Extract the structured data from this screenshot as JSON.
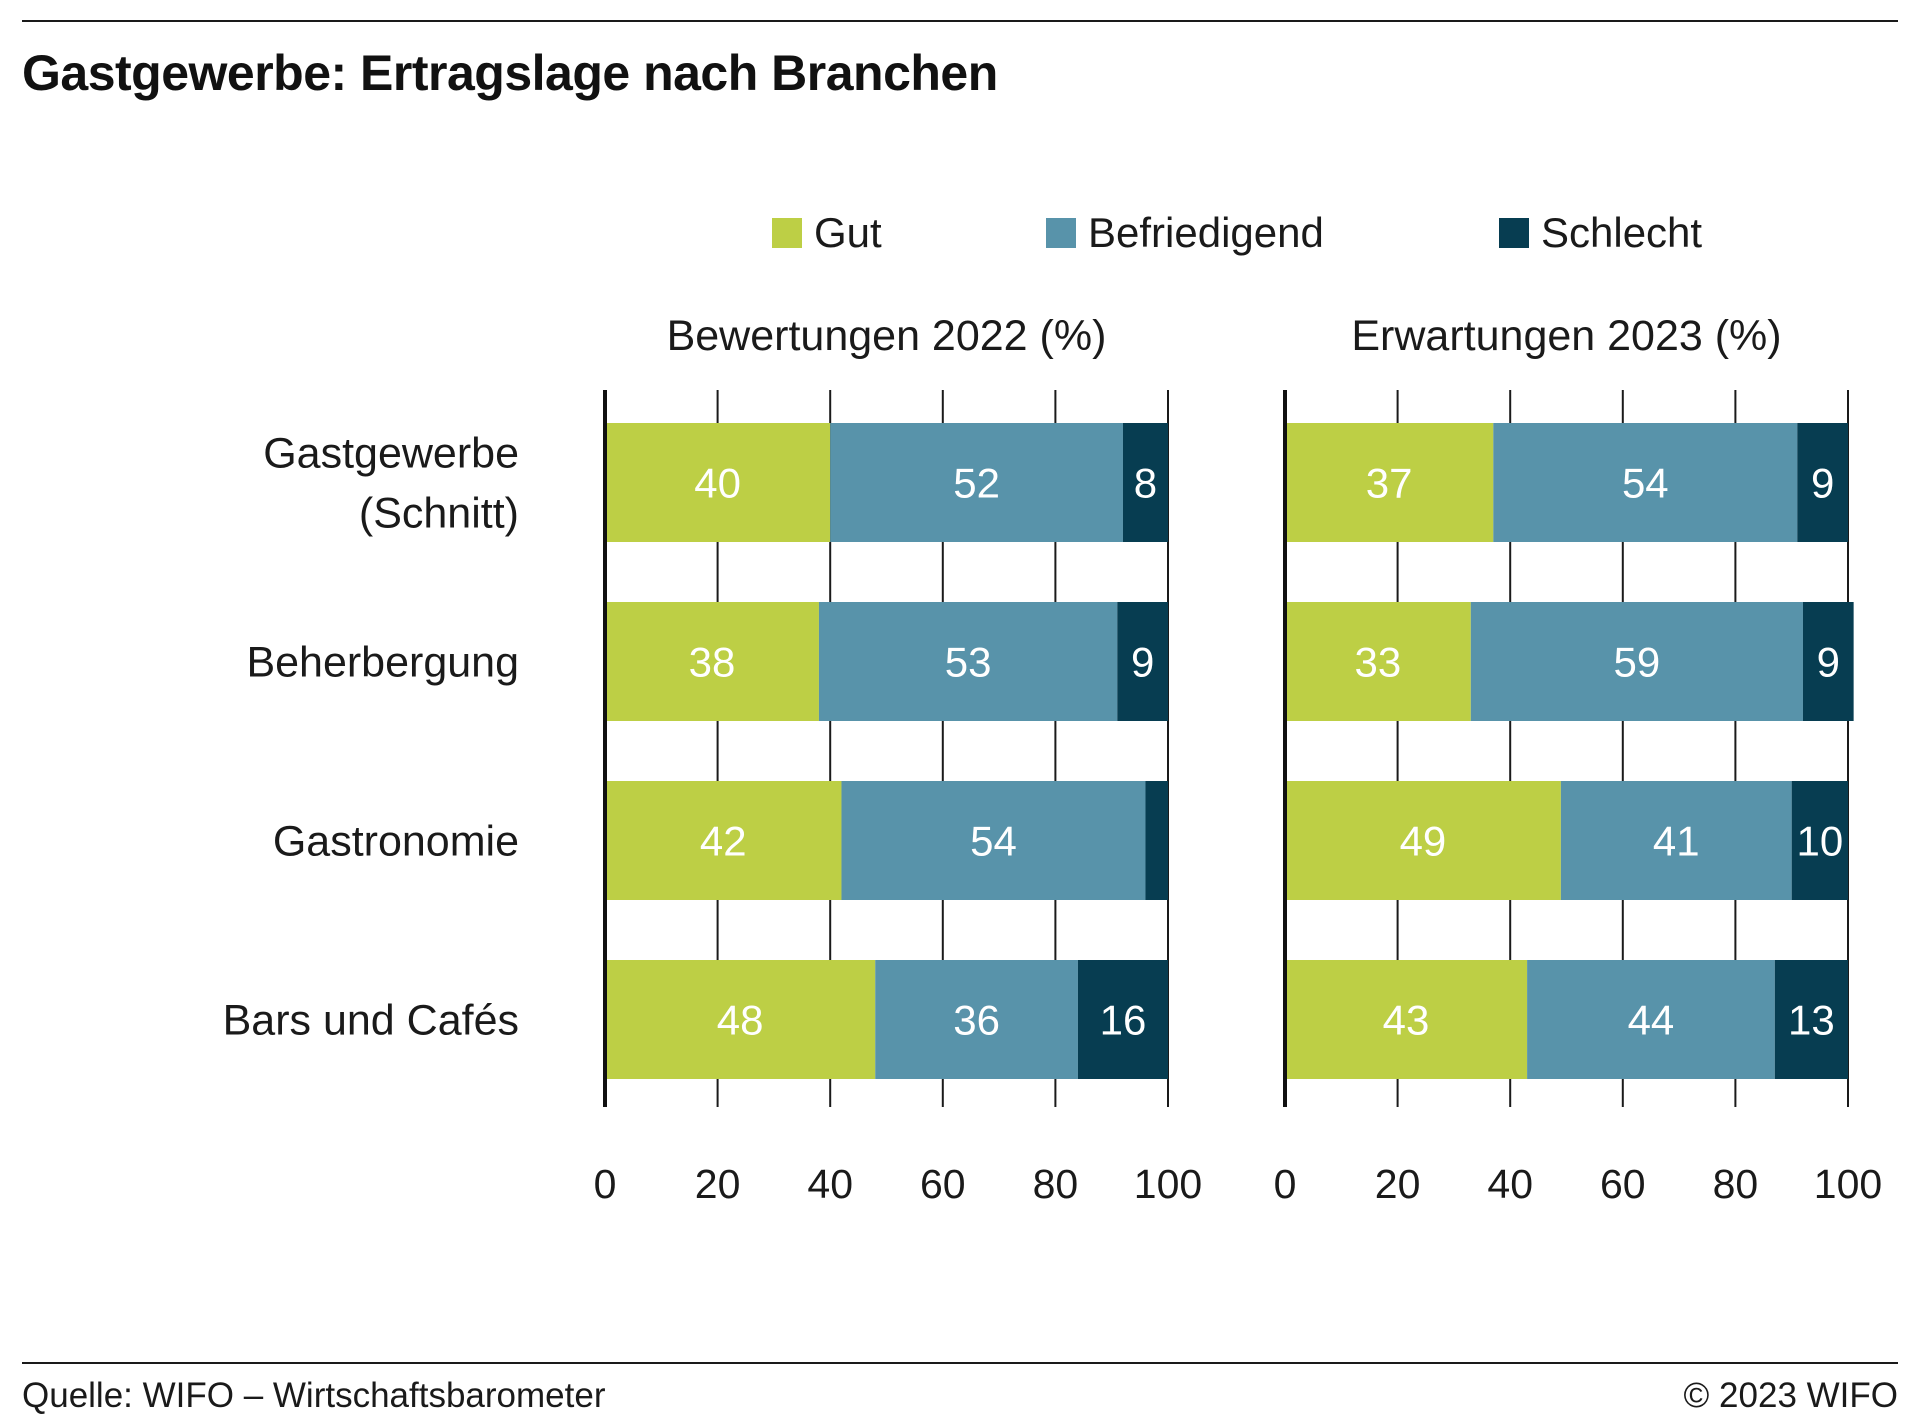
{
  "title": "Gastgewerbe: Ertragslage nach Branchen",
  "source": "Quelle: WIFO – Wirtschaftsbarometer",
  "copyright": "© 2023 WIFO",
  "colors": {
    "Gut": "#bdcf45",
    "Befriedigend": "#5893aa",
    "Schlecht": "#073d51"
  },
  "chart_data": [
    {
      "type": "bar",
      "orientation": "horizontal",
      "stacked": true,
      "title": "Bewertungen 2022 (%)",
      "categories": [
        "Gastgewerbe (Schnitt)",
        "Beherbergung",
        "Gastronomie",
        "Bars und Cafés"
      ],
      "category_lines": [
        [
          "Gastgewerbe",
          "(Schnitt)"
        ],
        [
          "Beherbergung"
        ],
        [
          "Gastronomie"
        ],
        [
          "Bars und Cafés"
        ]
      ],
      "series": [
        {
          "name": "Gut",
          "values": [
            40,
            38,
            42,
            48
          ],
          "labels": [
            "40",
            "38",
            "42",
            "48"
          ]
        },
        {
          "name": "Befriedigend",
          "values": [
            52,
            53,
            54,
            36
          ],
          "labels": [
            "52",
            "53",
            "54",
            "36"
          ]
        },
        {
          "name": "Schlecht",
          "values": [
            8,
            9,
            4,
            16
          ],
          "labels": [
            "8",
            "9",
            "",
            "16"
          ]
        }
      ],
      "xlim": [
        0,
        100
      ],
      "xticks": [
        "0",
        "20",
        "40",
        "60",
        "80",
        "100"
      ],
      "grid": true,
      "legend": "top"
    },
    {
      "type": "bar",
      "orientation": "horizontal",
      "stacked": true,
      "title": "Erwartungen 2023 (%)",
      "categories": [
        "Gastgewerbe (Schnitt)",
        "Beherbergung",
        "Gastronomie",
        "Bars und Cafés"
      ],
      "series": [
        {
          "name": "Gut",
          "values": [
            37,
            33,
            49,
            43
          ],
          "labels": [
            "37",
            "33",
            "49",
            "43"
          ]
        },
        {
          "name": "Befriedigend",
          "values": [
            54,
            59,
            41,
            44
          ],
          "labels": [
            "54",
            "59",
            "41",
            "44"
          ]
        },
        {
          "name": "Schlecht",
          "values": [
            9,
            9,
            10,
            13
          ],
          "labels": [
            "9",
            "9",
            "10",
            "13"
          ]
        }
      ],
      "xlim": [
        0,
        100
      ],
      "xticks": [
        "0",
        "20",
        "40",
        "60",
        "80",
        "100"
      ],
      "grid": true,
      "legend": "top"
    }
  ]
}
